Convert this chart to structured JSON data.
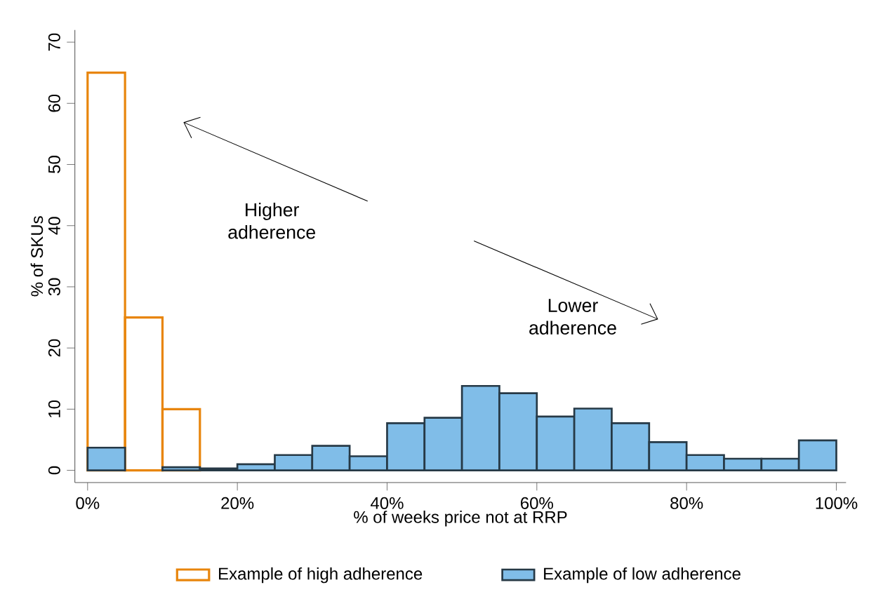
{
  "chart_data": {
    "type": "histogram",
    "xlabel": "% of weeks price not at RRP",
    "ylabel": "% of SKUs",
    "bins": [
      0,
      5,
      10,
      15,
      20,
      25,
      30,
      35,
      40,
      45,
      50,
      55,
      60,
      65,
      70,
      75,
      80,
      85,
      90,
      95,
      100
    ],
    "series": [
      {
        "name": "Example of high adherence",
        "color": "#e8850c",
        "values": [
          65,
          25,
          10,
          null,
          null,
          null,
          null,
          null,
          null,
          null,
          null,
          null,
          null,
          null,
          null,
          null,
          null,
          null,
          null,
          null
        ]
      },
      {
        "name": "Example of low adherence",
        "color": "#80bde8",
        "values": [
          3.7,
          null,
          0.5,
          0.3,
          1,
          2.5,
          4,
          2.3,
          7.7,
          8.6,
          13.8,
          12.6,
          8.8,
          10.1,
          7.7,
          4.6,
          2.5,
          1.9,
          1.9,
          4.9
        ]
      }
    ],
    "xlim": [
      -1.7,
      101.3
    ],
    "ylim": [
      -2,
      72
    ],
    "xticks": [
      {
        "value": 0,
        "label": "0%"
      },
      {
        "value": 20,
        "label": "20%"
      },
      {
        "value": 40,
        "label": "40%"
      },
      {
        "value": 60,
        "label": "60%"
      },
      {
        "value": 80,
        "label": "80%"
      },
      {
        "value": 100,
        "label": "100%"
      }
    ],
    "yticks": [
      0,
      10,
      20,
      30,
      40,
      50,
      60,
      70
    ],
    "legend": "bottom",
    "annotations": [
      "Higher adherence",
      "Lower adherence"
    ]
  }
}
